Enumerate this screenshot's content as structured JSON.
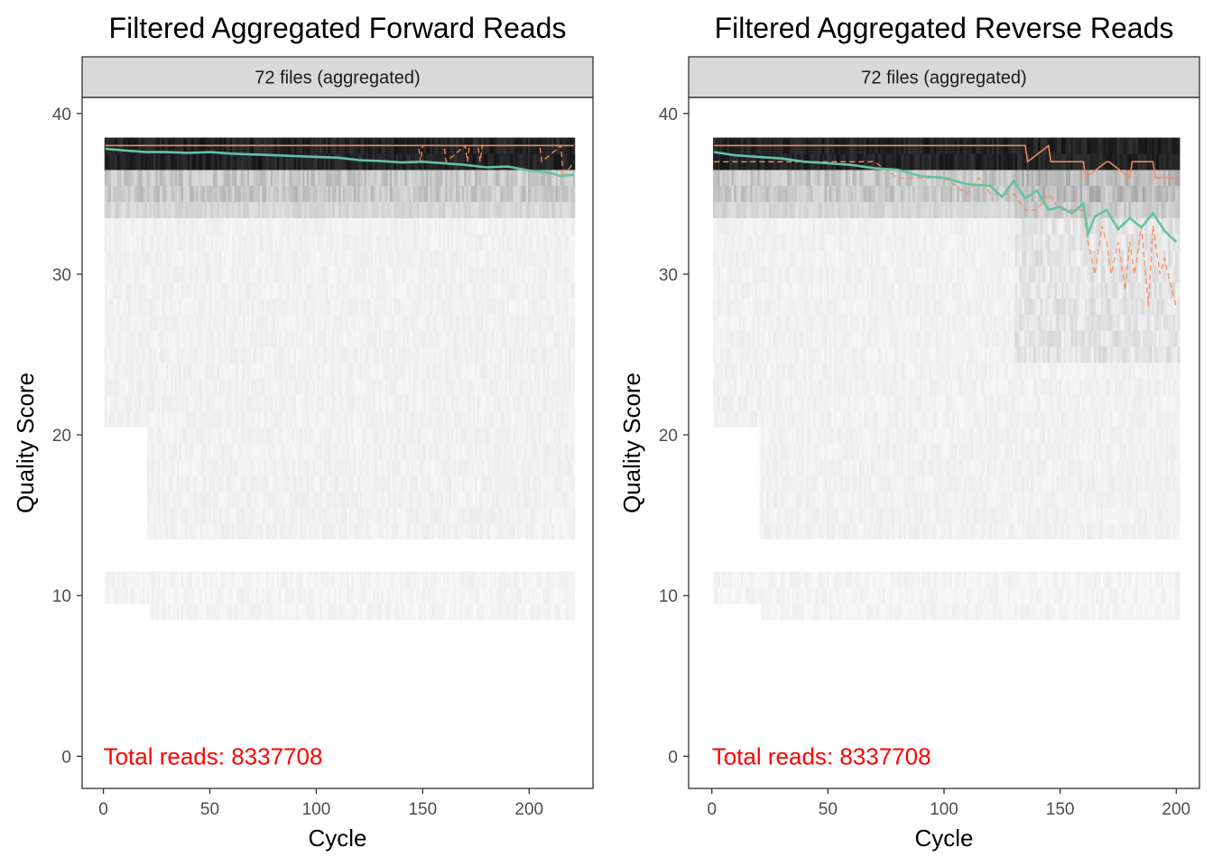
{
  "chart_data": [
    {
      "type": "heatmap",
      "title": "Filtered Aggregated Forward Reads",
      "strip_label": "72 files (aggregated)",
      "xlabel": "Cycle",
      "ylabel": "Quality Score",
      "xlim": [
        -10,
        230
      ],
      "ylim": [
        -2,
        41
      ],
      "xticks": [
        0,
        50,
        100,
        150,
        200
      ],
      "yticks": [
        0,
        10,
        20,
        30,
        40
      ],
      "annotation": "Total reads: 8337708",
      "n_cycles": 221,
      "mean_quality": {
        "x": [
          1,
          10,
          20,
          30,
          40,
          50,
          60,
          70,
          80,
          90,
          100,
          110,
          120,
          130,
          140,
          150,
          160,
          170,
          180,
          190,
          200,
          210,
          215,
          221
        ],
        "y": [
          37.8,
          37.7,
          37.6,
          37.6,
          37.55,
          37.6,
          37.5,
          37.45,
          37.4,
          37.35,
          37.3,
          37.25,
          37.1,
          37.05,
          36.95,
          37.0,
          36.9,
          36.8,
          36.65,
          36.7,
          36.45,
          36.3,
          36.1,
          36.2
        ]
      },
      "median_quality": {
        "x": [
          1,
          221
        ],
        "y": [
          38,
          38
        ]
      },
      "quartile_lower": {
        "x": [
          1,
          148,
          149,
          150,
          151,
          160,
          161,
          170,
          171,
          172,
          176,
          177,
          178,
          205,
          206,
          215,
          216,
          221
        ],
        "y": [
          38,
          38,
          37,
          38,
          38,
          38,
          37,
          38,
          37,
          38,
          38,
          37,
          38,
          38,
          37,
          38,
          36,
          37
        ]
      },
      "colors": {
        "mean": "#66c2a5",
        "quartile": "#fc8d62",
        "annotation": "#ff0000",
        "panel_border": "#333333",
        "strip_fill": "#d9d9d9"
      }
    },
    {
      "type": "heatmap",
      "title": "Filtered Aggregated Reverse Reads",
      "strip_label": "72 files (aggregated)",
      "xlabel": "Cycle",
      "ylabel": "Quality Score",
      "xlim": [
        -10,
        210
      ],
      "ylim": [
        -2,
        41
      ],
      "xticks": [
        0,
        50,
        100,
        150,
        200
      ],
      "yticks": [
        0,
        10,
        20,
        30,
        40
      ],
      "annotation": "Total reads: 8337708",
      "n_cycles": 201,
      "mean_quality": {
        "x": [
          1,
          10,
          20,
          30,
          40,
          50,
          60,
          70,
          80,
          90,
          100,
          110,
          120,
          125,
          130,
          135,
          140,
          145,
          150,
          155,
          160,
          162,
          165,
          170,
          175,
          180,
          185,
          190,
          195,
          200
        ],
        "y": [
          37.6,
          37.4,
          37.3,
          37.2,
          37.0,
          36.9,
          36.8,
          36.6,
          36.5,
          36.1,
          36.0,
          35.6,
          35.5,
          34.8,
          35.8,
          34.7,
          35.2,
          34.0,
          34.2,
          33.8,
          34.4,
          32.5,
          33.6,
          34.0,
          32.8,
          33.5,
          32.9,
          33.8,
          32.7,
          32.0
        ]
      },
      "median_quality": {
        "x": [
          1,
          135,
          136,
          145,
          146,
          160,
          161,
          170,
          171,
          180,
          181,
          190,
          191,
          200
        ],
        "y": [
          38,
          38,
          37,
          38,
          37,
          37,
          36,
          37,
          37,
          36,
          37,
          37,
          36,
          36
        ]
      },
      "quartile_lower": {
        "x": [
          1,
          50,
          60,
          70,
          80,
          90,
          100,
          110,
          115,
          120,
          125,
          130,
          135,
          140,
          145,
          150,
          155,
          160,
          162,
          165,
          168,
          170,
          172,
          175,
          178,
          180,
          182,
          185,
          188,
          190,
          193,
          195,
          198,
          200
        ],
        "y": [
          37,
          37,
          37,
          37,
          36,
          36,
          36,
          35,
          36,
          35,
          35,
          35,
          34,
          34,
          35,
          34,
          34,
          34,
          32,
          30,
          33,
          32,
          30,
          32,
          29,
          32,
          30,
          33,
          28,
          33,
          30,
          31,
          29,
          28
        ]
      },
      "colors": {
        "mean": "#66c2a5",
        "quartile": "#fc8d62",
        "annotation": "#ff0000",
        "panel_border": "#333333",
        "strip_fill": "#d9d9d9"
      }
    }
  ]
}
